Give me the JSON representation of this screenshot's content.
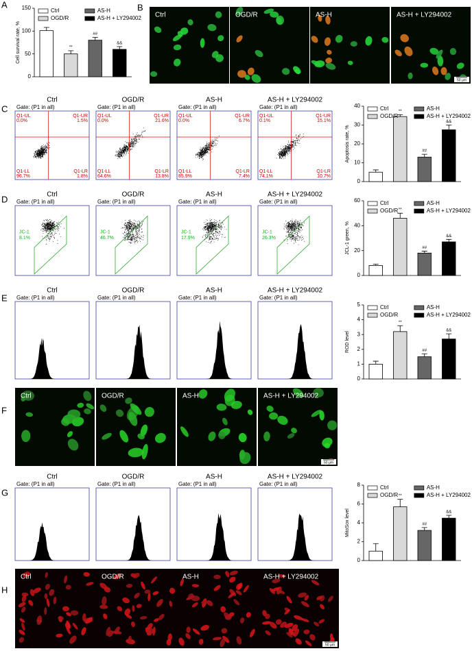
{
  "panels": [
    "A",
    "B",
    "C",
    "D",
    "E",
    "F",
    "G",
    "H"
  ],
  "groups": [
    "Ctrl",
    "OGD/R",
    "AS-H",
    "AS-H + LY294002"
  ],
  "scale_bar": "50 μm",
  "gate": "Gate: (P1 in all)",
  "quadrant_names": [
    "Q1-UL",
    "Q1-UR",
    "Q1-LL",
    "Q1-LR"
  ],
  "quadrants": [
    [
      "0.0%",
      "1.5%",
      "96.7%",
      "1.8%"
    ],
    [
      "0.0%",
      "21.6%",
      "64.6%",
      "13.8%"
    ],
    [
      "0.0%",
      "6.7%",
      "85.9%",
      "7.4%"
    ],
    [
      "0.1%",
      "15.1%",
      "74.1%",
      "10.7%"
    ]
  ],
  "jc1": {
    "label": "JC-1",
    "percents": [
      "8.1%",
      "46.7%",
      "17.9%",
      "26.3%"
    ]
  },
  "chart_data": [
    {
      "type": "bar",
      "y_label": "Cell survival rate, %",
      "categories": [
        "Ctrl",
        "OGD/R",
        "AS-H",
        "AS-H + LY294002"
      ],
      "values": [
        101,
        50,
        80,
        60
      ],
      "errors": [
        7,
        7,
        6,
        6
      ],
      "annotations": [
        null,
        "**",
        "##",
        "&&"
      ],
      "colors": [
        "#ffffff",
        "#d9d9d9",
        "#666666",
        "#000000"
      ],
      "ylim": [
        0,
        150
      ],
      "yticks": [
        0,
        50,
        100,
        150
      ],
      "legend": true
    },
    {
      "type": "bar",
      "y_label": "Apoptosis rate, %",
      "categories": [
        "Ctrl",
        "OGD/R",
        "AS-H",
        "AS-H + LY294002"
      ],
      "values": [
        5,
        34.5,
        13,
        27.5
      ],
      "errors": [
        1.2,
        1,
        1.5,
        2.5
      ],
      "annotations": [
        null,
        "**",
        "##",
        "&&"
      ],
      "colors": [
        "#ffffff",
        "#d9d9d9",
        "#666666",
        "#000000"
      ],
      "ylim": [
        0,
        40
      ],
      "yticks": [
        0,
        10,
        20,
        30,
        40
      ],
      "legend": true
    },
    {
      "type": "bar",
      "y_label": "JCL-1 green, %",
      "categories": [
        "Ctrl",
        "OGD/R",
        "AS-H",
        "AS-H + LY294002"
      ],
      "values": [
        8,
        46,
        18,
        27
      ],
      "errors": [
        1,
        4,
        1.5,
        2
      ],
      "annotations": [
        null,
        "**",
        "##",
        "&&"
      ],
      "colors": [
        "#ffffff",
        "#d9d9d9",
        "#666666",
        "#000000"
      ],
      "ylim": [
        0,
        60
      ],
      "yticks": [
        0,
        20,
        40,
        60
      ],
      "legend": true
    },
    {
      "type": "bar",
      "y_label": "ROD level",
      "categories": [
        "Ctrl",
        "OGD/R",
        "AS-H",
        "AS-H + LY294002"
      ],
      "values": [
        1,
        3.2,
        1.5,
        2.7
      ],
      "errors": [
        0.2,
        0.4,
        0.2,
        0.35
      ],
      "annotations": [
        null,
        "**",
        "##",
        "&&"
      ],
      "colors": [
        "#ffffff",
        "#d9d9d9",
        "#666666",
        "#000000"
      ],
      "ylim": [
        0,
        5
      ],
      "yticks": [
        0,
        1,
        2,
        3,
        4,
        5
      ],
      "legend": true
    },
    {
      "type": "bar",
      "y_label": "MitoSox level",
      "categories": [
        "Ctrl",
        "OGD/R",
        "AS-H",
        "AS-H + LY294002"
      ],
      "values": [
        1,
        5.7,
        3.2,
        4.5
      ],
      "errors": [
        0.8,
        0.8,
        0.3,
        0.3
      ],
      "annotations": [
        null,
        "**",
        "##",
        "&&"
      ],
      "colors": [
        "#ffffff",
        "#d9d9d9",
        "#666666",
        "#000000"
      ],
      "ylim": [
        0,
        8
      ],
      "yticks": [
        0,
        2,
        4,
        6,
        8
      ],
      "legend": true
    }
  ]
}
